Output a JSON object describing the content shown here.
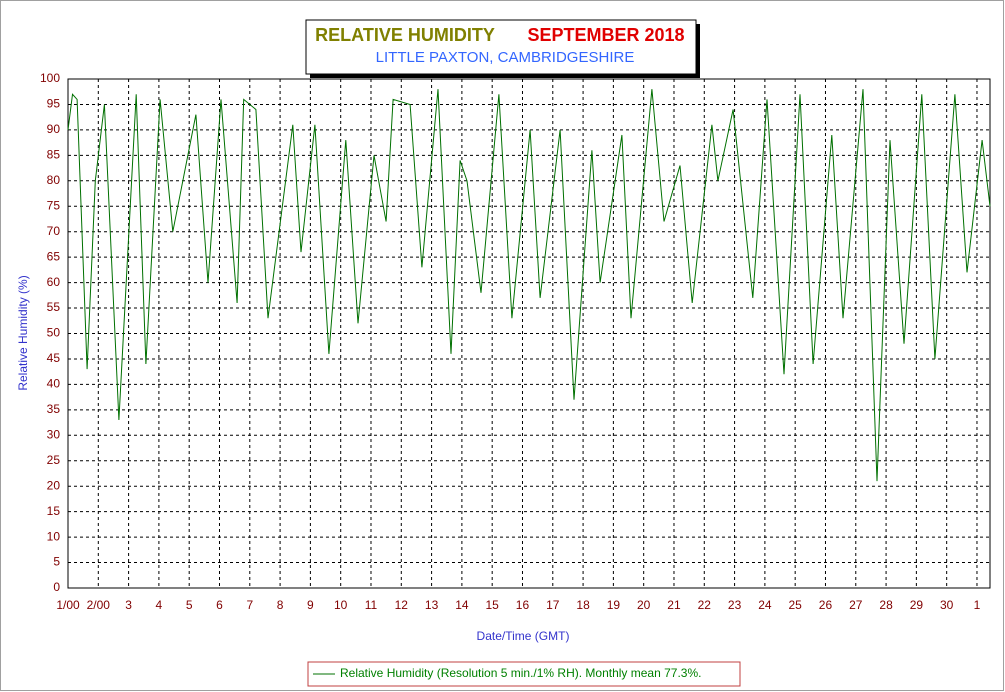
{
  "chart_data": {
    "type": "line",
    "title": "RELATIVE HUMIDITY",
    "title_2": "SEPTEMBER 2018",
    "subtitle": "LITTLE PAXTON, CAMBRIDGESHIRE",
    "x_label": "Date/Time (GMT)",
    "y_label": "Relative Humidity (%)",
    "x": [
      1.0,
      1.15,
      1.3,
      1.63,
      1.9,
      2.2,
      2.68,
      3.25,
      3.57,
      4.04,
      4.46,
      5.22,
      5.62,
      6.05,
      6.58,
      6.8,
      7.2,
      7.6,
      8.42,
      8.69,
      9.15,
      9.61,
      10.17,
      10.57,
      11.1,
      11.5,
      11.73,
      12.29,
      12.68,
      13.21,
      13.64,
      13.94,
      14.17,
      14.63,
      15.22,
      15.65,
      16.25,
      16.58,
      17.24,
      17.7,
      18.29,
      18.56,
      19.28,
      19.58,
      20.27,
      20.67,
      21.2,
      21.6,
      22.25,
      22.45,
      22.95,
      23.6,
      24.07,
      24.63,
      25.16,
      25.59,
      26.21,
      26.58,
      27.24,
      27.7,
      28.13,
      28.59,
      29.18,
      29.61,
      30.27,
      30.67,
      31.17,
      31.43
    ],
    "series": [
      {
        "name": "Relative Humidity (Resolution 5 min./1% RH). Monthly mean 77.3%.",
        "color": "#007000",
        "values": [
          90,
          97,
          96,
          43,
          80,
          95,
          33,
          97,
          44,
          96,
          70,
          93,
          60,
          96,
          56,
          96,
          94,
          53,
          91,
          66,
          91,
          46,
          88,
          52,
          85,
          72,
          96,
          95,
          63,
          98,
          46,
          84,
          80,
          58,
          97,
          53,
          90,
          57,
          90,
          37,
          86,
          60,
          89,
          53,
          98,
          72,
          83,
          56,
          91,
          80,
          94,
          57,
          96,
          42,
          97,
          44,
          89,
          53,
          98,
          21,
          88,
          48,
          97,
          45,
          97,
          62,
          88,
          75
        ]
      }
    ],
    "xlim": [
      1,
      31.43
    ],
    "xticks": [
      {
        "value": 1,
        "label": "1/00"
      },
      {
        "value": 2,
        "label": "2/00"
      },
      3,
      4,
      5,
      6,
      7,
      8,
      9,
      10,
      11,
      12,
      13,
      14,
      15,
      16,
      17,
      18,
      19,
      20,
      21,
      22,
      23,
      24,
      25,
      26,
      27,
      28,
      29,
      30,
      {
        "value": 31,
        "label": "1"
      }
    ],
    "ylim": [
      0,
      100
    ],
    "yticks": [
      0,
      5,
      10,
      15,
      20,
      25,
      30,
      35,
      40,
      45,
      50,
      55,
      60,
      65,
      70,
      75,
      80,
      85,
      90,
      95,
      100
    ],
    "grid": true
  }
}
